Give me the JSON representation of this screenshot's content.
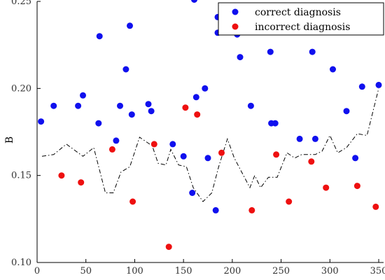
{
  "chart_data": {
    "type": "scatter",
    "xlabel": "",
    "ylabel": "B",
    "xlim": [
      0,
      355
    ],
    "ylim": [
      0.1,
      0.25
    ],
    "x_ticks": [
      0,
      50,
      100,
      150,
      200,
      250,
      300,
      350
    ],
    "y_ticks": [
      0.1,
      0.15,
      0.2,
      0.25
    ],
    "x_tick_labels": [
      "0",
      "50",
      "100",
      "150",
      "200",
      "250",
      "300",
      "350"
    ],
    "y_tick_labels": [
      "0.10",
      "0.15",
      "0.20",
      "0.25"
    ],
    "legend_position": "top-right",
    "grid": false,
    "series": [
      {
        "name": "correct diagnosis",
        "color": "#1010ee",
        "marker": "circle",
        "points": [
          [
            4,
            0.181
          ],
          [
            17,
            0.19
          ],
          [
            42,
            0.19
          ],
          [
            47,
            0.196
          ],
          [
            63,
            0.18
          ],
          [
            64,
            0.23
          ],
          [
            81,
            0.17
          ],
          [
            85,
            0.19
          ],
          [
            91,
            0.211
          ],
          [
            95,
            0.236
          ],
          [
            97,
            0.185
          ],
          [
            114,
            0.191
          ],
          [
            117,
            0.187
          ],
          [
            139,
            0.168
          ],
          [
            150,
            0.161
          ],
          [
            159,
            0.14
          ],
          [
            161,
            0.251
          ],
          [
            163,
            0.195
          ],
          [
            172,
            0.2
          ],
          [
            175,
            0.16
          ],
          [
            183,
            0.13
          ],
          [
            185,
            0.241
          ],
          [
            185,
            0.232
          ],
          [
            205,
            0.231
          ],
          [
            208,
            0.218
          ],
          [
            219,
            0.19
          ],
          [
            239,
            0.221
          ],
          [
            240,
            0.18
          ],
          [
            244,
            0.18
          ],
          [
            269,
            0.171
          ],
          [
            282,
            0.221
          ],
          [
            285,
            0.171
          ],
          [
            303,
            0.211
          ],
          [
            317,
            0.187
          ],
          [
            326,
            0.16
          ],
          [
            333,
            0.201
          ],
          [
            350,
            0.202
          ]
        ]
      },
      {
        "name": "incorrect diagnosis",
        "color": "#ee1010",
        "marker": "circle",
        "points": [
          [
            25,
            0.15
          ],
          [
            45,
            0.146
          ],
          [
            77,
            0.165
          ],
          [
            98,
            0.135
          ],
          [
            120,
            0.168
          ],
          [
            135,
            0.109
          ],
          [
            152,
            0.189
          ],
          [
            164,
            0.185
          ],
          [
            189,
            0.163
          ],
          [
            220,
            0.13
          ],
          [
            245,
            0.162
          ],
          [
            258,
            0.135
          ],
          [
            281,
            0.158
          ],
          [
            296,
            0.143
          ],
          [
            328,
            0.144
          ],
          [
            347,
            0.132
          ]
        ]
      },
      {
        "name": "",
        "color": "#000000",
        "marker": "none",
        "line_style": "dash-dot",
        "points": [
          [
            5,
            0.161
          ],
          [
            17,
            0.162
          ],
          [
            30,
            0.168
          ],
          [
            47,
            0.161
          ],
          [
            58,
            0.166
          ],
          [
            70,
            0.14
          ],
          [
            78,
            0.14
          ],
          [
            86,
            0.152
          ],
          [
            95,
            0.155
          ],
          [
            105,
            0.172
          ],
          [
            118,
            0.167
          ],
          [
            124,
            0.157
          ],
          [
            132,
            0.156
          ],
          [
            137,
            0.165
          ],
          [
            145,
            0.156
          ],
          [
            153,
            0.155
          ],
          [
            160,
            0.143
          ],
          [
            170,
            0.135
          ],
          [
            179,
            0.14
          ],
          [
            186,
            0.155
          ],
          [
            195,
            0.171
          ],
          [
            202,
            0.16
          ],
          [
            218,
            0.143
          ],
          [
            223,
            0.15
          ],
          [
            229,
            0.143
          ],
          [
            237,
            0.149
          ],
          [
            246,
            0.149
          ],
          [
            256,
            0.163
          ],
          [
            264,
            0.16
          ],
          [
            271,
            0.162
          ],
          [
            285,
            0.162
          ],
          [
            292,
            0.164
          ],
          [
            300,
            0.173
          ],
          [
            308,
            0.163
          ],
          [
            317,
            0.166
          ],
          [
            328,
            0.174
          ],
          [
            338,
            0.173
          ],
          [
            350,
            0.2
          ]
        ]
      }
    ]
  }
}
